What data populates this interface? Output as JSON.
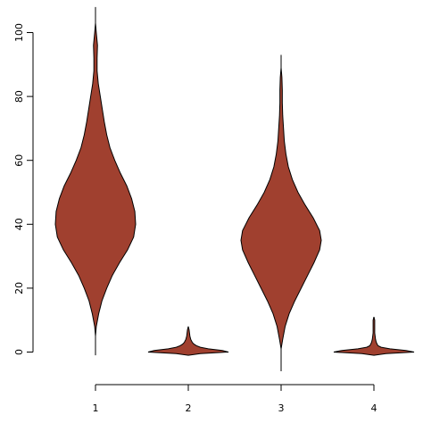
{
  "chart_data": {
    "type": "violin",
    "title": "",
    "xlabel": "",
    "ylabel": "",
    "categories": [
      "1",
      "2",
      "3",
      "4"
    ],
    "yticks": [
      0,
      20,
      40,
      60,
      80,
      100
    ],
    "ylim": [
      -8,
      108
    ],
    "fill_color": "#A0402F",
    "outline_color": "#000000",
    "violins": [
      {
        "category": "1",
        "whisker": [
          -1,
          108
        ],
        "profile": [
          [
            5,
            0.0
          ],
          [
            8,
            0.02
          ],
          [
            12,
            0.08
          ],
          [
            16,
            0.16
          ],
          [
            20,
            0.28
          ],
          [
            24,
            0.42
          ],
          [
            28,
            0.6
          ],
          [
            32,
            0.8
          ],
          [
            36,
            0.95
          ],
          [
            40,
            1.0
          ],
          [
            44,
            0.98
          ],
          [
            48,
            0.9
          ],
          [
            52,
            0.78
          ],
          [
            56,
            0.62
          ],
          [
            60,
            0.48
          ],
          [
            64,
            0.36
          ],
          [
            68,
            0.28
          ],
          [
            72,
            0.22
          ],
          [
            76,
            0.17
          ],
          [
            80,
            0.12
          ],
          [
            84,
            0.07
          ],
          [
            88,
            0.04
          ],
          [
            92,
            0.04
          ],
          [
            96,
            0.05
          ],
          [
            100,
            0.02
          ],
          [
            103,
            0.0
          ]
        ]
      },
      {
        "category": "2",
        "whisker": [
          -1,
          8
        ],
        "profile": [
          [
            -1,
            0.0
          ],
          [
            -0.5,
            0.3
          ],
          [
            0,
            1.0
          ],
          [
            0.5,
            0.85
          ],
          [
            1,
            0.5
          ],
          [
            1.5,
            0.3
          ],
          [
            2,
            0.2
          ],
          [
            2.5,
            0.14
          ],
          [
            3,
            0.1
          ],
          [
            4,
            0.06
          ],
          [
            5,
            0.04
          ],
          [
            6,
            0.03
          ],
          [
            7,
            0.02
          ],
          [
            8,
            0.0
          ]
        ]
      },
      {
        "category": "3",
        "whisker": [
          -6,
          93
        ],
        "profile": [
          [
            1,
            0.0
          ],
          [
            4,
            0.04
          ],
          [
            8,
            0.1
          ],
          [
            12,
            0.2
          ],
          [
            16,
            0.34
          ],
          [
            20,
            0.5
          ],
          [
            24,
            0.66
          ],
          [
            28,
            0.82
          ],
          [
            32,
            0.96
          ],
          [
            35,
            1.0
          ],
          [
            38,
            0.96
          ],
          [
            42,
            0.8
          ],
          [
            46,
            0.6
          ],
          [
            50,
            0.42
          ],
          [
            54,
            0.28
          ],
          [
            58,
            0.18
          ],
          [
            62,
            0.12
          ],
          [
            66,
            0.08
          ],
          [
            70,
            0.06
          ],
          [
            74,
            0.04
          ],
          [
            78,
            0.03
          ],
          [
            82,
            0.03
          ],
          [
            86,
            0.02
          ],
          [
            89,
            0.0
          ]
        ]
      },
      {
        "category": "4",
        "whisker": [
          -1,
          11
        ],
        "profile": [
          [
            -1,
            0.0
          ],
          [
            -0.5,
            0.3
          ],
          [
            0,
            1.0
          ],
          [
            0.5,
            0.8
          ],
          [
            1,
            0.4
          ],
          [
            1.5,
            0.18
          ],
          [
            2,
            0.1
          ],
          [
            3,
            0.06
          ],
          [
            4,
            0.04
          ],
          [
            5,
            0.03
          ],
          [
            6,
            0.02
          ],
          [
            8,
            0.02
          ],
          [
            10,
            0.02
          ],
          [
            11,
            0.0
          ]
        ]
      }
    ]
  }
}
